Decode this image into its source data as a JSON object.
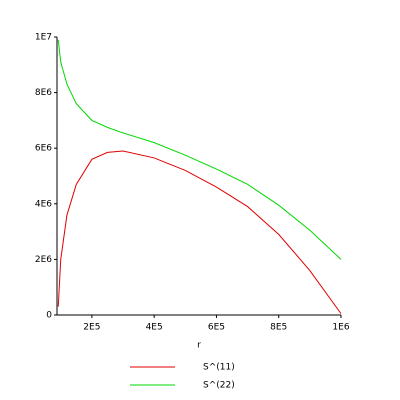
{
  "chart_data": {
    "type": "line",
    "x_label": "r",
    "x": [
      92000,
      100000,
      120000,
      150000,
      200000,
      250000,
      300000,
      400000,
      500000,
      600000,
      700000,
      800000,
      900000,
      1000000
    ],
    "series": [
      {
        "name": "S^(11)",
        "color": "#e00000",
        "values": [
          300000,
          2000000,
          3600000,
          4700000,
          5600000,
          5850000,
          5900000,
          5650000,
          5200000,
          4600000,
          3900000,
          2900000,
          1600000,
          50000
        ]
      },
      {
        "name": "S^(22)",
        "color": "#00d800",
        "values": [
          9900000,
          9100000,
          8300000,
          7600000,
          7000000,
          6750000,
          6550000,
          6200000,
          5750000,
          5250000,
          4700000,
          3950000,
          3050000,
          2000000
        ]
      }
    ],
    "xlim": [
      88000,
      1000000
    ],
    "xticks": [
      {
        "value": 200000,
        "label": "2E5"
      },
      {
        "value": 400000,
        "label": "4E5"
      },
      {
        "value": 600000,
        "label": "6E5"
      },
      {
        "value": 800000,
        "label": "8E5"
      },
      {
        "value": 1000000,
        "label": "1E6"
      }
    ],
    "ylim": [
      0,
      10000000
    ],
    "yticks": [
      0,
      {
        "value": 2000000,
        "label": "2E6"
      },
      {
        "value": 4000000,
        "label": "4E6"
      },
      {
        "value": 6000000,
        "label": "6E6"
      },
      {
        "value": 8000000,
        "label": "8E6"
      },
      {
        "value": 10000000,
        "label": "1E7"
      }
    ],
    "grid": false
  }
}
